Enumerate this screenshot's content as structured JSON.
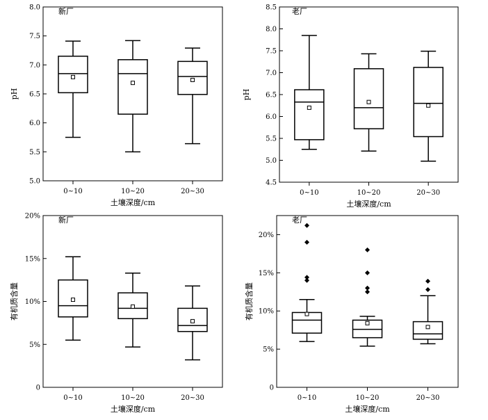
{
  "chart_data": [
    {
      "id": "p1",
      "type": "box",
      "panel_label": "新厂",
      "xlabel": "土壤深度/cm",
      "ylabel": "pH",
      "categories": [
        "0~10",
        "10~20",
        "20~30"
      ],
      "ylim": [
        5.0,
        8.0
      ],
      "yticks": [
        5.0,
        5.5,
        6.0,
        6.5,
        7.0,
        7.5,
        8.0
      ],
      "ytick_labels": [
        "5.0",
        "5.5",
        "6.0",
        "6.5",
        "7.0",
        "7.5",
        "8.0"
      ],
      "boxes": [
        {
          "whisker_low": 5.75,
          "q1": 6.52,
          "median": 6.85,
          "q3": 7.15,
          "whisker_high": 7.41,
          "mean": 6.79,
          "outliers": []
        },
        {
          "whisker_low": 5.5,
          "q1": 6.15,
          "median": 6.85,
          "q3": 7.09,
          "whisker_high": 7.42,
          "mean": 6.69,
          "outliers": []
        },
        {
          "whisker_low": 5.64,
          "q1": 6.49,
          "median": 6.8,
          "q3": 7.06,
          "whisker_high": 7.29,
          "mean": 6.74,
          "outliers": []
        }
      ]
    },
    {
      "id": "p2",
      "type": "box",
      "panel_label": "老厂",
      "xlabel": "土壤深度/cm",
      "ylabel": "pH",
      "categories": [
        "0~10",
        "10~20",
        "20~30"
      ],
      "ylim": [
        4.5,
        8.5
      ],
      "yticks": [
        4.5,
        5.0,
        5.5,
        6.0,
        6.5,
        7.0,
        7.5,
        8.0,
        8.5
      ],
      "ytick_labels": [
        "4.5",
        "5.0",
        "5.5",
        "6.0",
        "6.5",
        "7.0",
        "7.5",
        "8.0",
        "8.5"
      ],
      "boxes": [
        {
          "whisker_low": 5.25,
          "q1": 5.47,
          "median": 6.33,
          "q3": 6.61,
          "whisker_high": 7.85,
          "mean": 6.2,
          "outliers": []
        },
        {
          "whisker_low": 5.21,
          "q1": 5.72,
          "median": 6.2,
          "q3": 7.09,
          "whisker_high": 7.43,
          "mean": 6.33,
          "outliers": []
        },
        {
          "whisker_low": 4.98,
          "q1": 5.54,
          "median": 6.3,
          "q3": 7.12,
          "whisker_high": 7.49,
          "mean": 6.25,
          "outliers": []
        }
      ]
    },
    {
      "id": "p3",
      "type": "box",
      "panel_label": "新厂",
      "xlabel": "土壤深度/cm",
      "ylabel": "有机质含量",
      "categories": [
        "0~10",
        "10~20",
        "20~30"
      ],
      "ylim": [
        0,
        20
      ],
      "yticks": [
        0,
        5,
        10,
        15,
        20
      ],
      "ytick_labels": [
        "0",
        "5%",
        "10%",
        "15%",
        "20%"
      ],
      "boxes": [
        {
          "whisker_low": 5.5,
          "q1": 8.2,
          "median": 9.5,
          "q3": 12.5,
          "whisker_high": 15.2,
          "mean": 10.2,
          "outliers": []
        },
        {
          "whisker_low": 4.7,
          "q1": 8.0,
          "median": 9.2,
          "q3": 11.0,
          "whisker_high": 13.3,
          "mean": 9.4,
          "outliers": []
        },
        {
          "whisker_low": 3.2,
          "q1": 6.5,
          "median": 7.2,
          "q3": 9.2,
          "whisker_high": 11.8,
          "mean": 7.7,
          "outliers": []
        }
      ]
    },
    {
      "id": "p4",
      "type": "box",
      "panel_label": "老厂",
      "xlabel": "土壤深度/cm",
      "ylabel": "有机质含量",
      "categories": [
        "0~10",
        "10~20",
        "20~30"
      ],
      "ylim": [
        0,
        22.5
      ],
      "yticks": [
        0,
        5,
        10,
        15,
        20
      ],
      "ytick_labels": [
        "0",
        "5%",
        "10%",
        "15%",
        "20%"
      ],
      "boxes": [
        {
          "whisker_low": 6.0,
          "q1": 7.1,
          "median": 8.8,
          "q3": 9.8,
          "whisker_high": 11.5,
          "mean": 9.6,
          "outliers": [
            14.0,
            14.4,
            19.0,
            21.2
          ]
        },
        {
          "whisker_low": 5.4,
          "q1": 6.5,
          "median": 7.6,
          "q3": 8.8,
          "whisker_high": 9.3,
          "mean": 8.4,
          "outliers": [
            12.5,
            13.0,
            15.0,
            18.0
          ]
        },
        {
          "whisker_low": 5.7,
          "q1": 6.3,
          "median": 7.0,
          "q3": 8.6,
          "whisker_high": 12.0,
          "mean": 7.9,
          "outliers": [
            12.8,
            13.9
          ]
        }
      ]
    }
  ]
}
